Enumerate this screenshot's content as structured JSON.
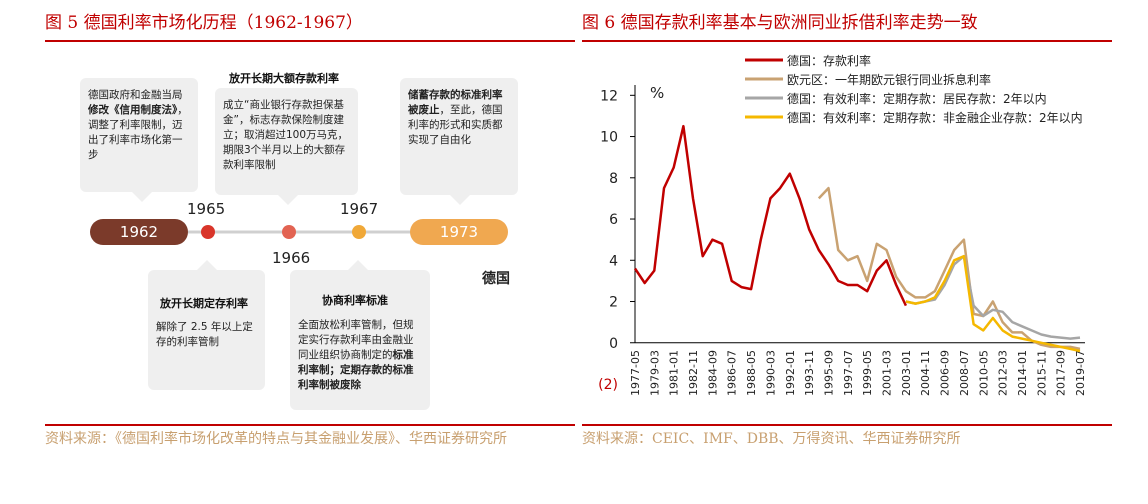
{
  "figure5": {
    "title": "图 5  德国利率市场化历程（1962-1967）",
    "timeline": {
      "start": "1962",
      "end": "1973",
      "points": [
        "1965",
        "1966",
        "1967"
      ],
      "country": "德国"
    },
    "boxes": [
      {
        "parts": [
          {
            "text": "德国政府和金融当局",
            "bold": false
          },
          {
            "text": "修改《信用制度法》",
            "bold": true
          },
          {
            "text": "，调整了利率限制，迈出了利率市场化第一步",
            "bold": false
          }
        ]
      },
      {
        "heading": "放开长期大额存款利率",
        "parts": [
          {
            "text": "成立“商业银行存款担保基金”，标志存款保险制度建立；取消超过100万马克，期限3个半月以上的大额存款利率限制",
            "bold": false
          }
        ]
      },
      {
        "parts": [
          {
            "text": "储蓄存款的标准利率被废止",
            "bold": true
          },
          {
            "text": "，至此，德国利率的形式和实质都实现了自由化",
            "bold": false
          }
        ]
      },
      {
        "heading": "放开长期定存利率",
        "parts": [
          {
            "text": "解除了 2.5 年以上定存的利率管制",
            "bold": false
          }
        ]
      },
      {
        "heading": "协商利率标准",
        "parts": [
          {
            "text": "全面放松利率管制，但规定实行存款利率由金融业同业组织协商制定的",
            "bold": false
          },
          {
            "text": "标准利率制；定期存款的标准利率制被废除",
            "bold": true
          }
        ]
      }
    ],
    "source": "资料来源：《德国利率市场化改革的特点与其金融业发展》、华西证券研究所"
  },
  "chart_data": {
    "type": "line",
    "title": "图 6  德国存款利率基本与欧洲同业拆借利率走势一致",
    "y_label": "%",
    "source": "资料来源：CEIC、IMF、DBB、万得资讯、华西证券研究所",
    "categories": [
      "1977-05",
      null,
      "1979-03",
      null,
      "1981-01",
      null,
      "1982-11",
      null,
      "1984-09",
      null,
      "1986-07",
      null,
      "1988-05",
      null,
      "1990-03",
      null,
      "1992-01",
      null,
      "1993-11",
      null,
      "1995-09",
      null,
      "1997-07",
      null,
      "1999-05",
      null,
      "2001-03",
      null,
      "2003-01",
      null,
      "2004-11",
      null,
      "2006-09",
      null,
      "2008-07",
      null,
      "2010-05",
      null,
      "2012-03",
      null,
      "2014-01",
      null,
      "2015-11",
      null,
      "2017-09",
      null,
      "2019-07"
    ],
    "ylim": [
      -2,
      12.5
    ],
    "yticks": [
      {
        "value": -2,
        "label": "(2)"
      },
      0,
      2,
      4,
      6,
      8,
      10,
      12
    ],
    "legend": "upper-left",
    "series": [
      {
        "name": "德国：存款利率",
        "color": "#c00000",
        "values": [
          3.6,
          2.9,
          3.5,
          7.5,
          8.5,
          10.5,
          7.0,
          4.2,
          5.0,
          4.8,
          3.0,
          2.7,
          2.6,
          5.0,
          7.0,
          7.5,
          8.2,
          7.0,
          5.5,
          4.5,
          3.8,
          3.0,
          2.8,
          2.8,
          2.5,
          3.5,
          4.0,
          2.8,
          1.8,
          null,
          null,
          null,
          null,
          null,
          null,
          null,
          null,
          null,
          null,
          null,
          null,
          null,
          null,
          null,
          null,
          null,
          null
        ]
      },
      {
        "name": "欧元区：一年期欧元银行同业拆息利率",
        "color": "#c9a272",
        "values": [
          null,
          null,
          null,
          null,
          null,
          null,
          null,
          null,
          null,
          null,
          null,
          null,
          null,
          null,
          null,
          null,
          null,
          null,
          null,
          7.0,
          7.5,
          4.5,
          4.0,
          4.2,
          3.0,
          4.8,
          4.5,
          3.2,
          2.5,
          2.2,
          2.2,
          2.5,
          3.5,
          4.5,
          5.0,
          1.4,
          1.3,
          2.0,
          1.0,
          0.5,
          0.5,
          0.1,
          -0.1,
          -0.2,
          -0.2,
          -0.2,
          -0.3
        ]
      },
      {
        "name": "德国：有效利率：定期存款：居民存款：2年以内",
        "color": "#a6a6a6",
        "values": [
          null,
          null,
          null,
          null,
          null,
          null,
          null,
          null,
          null,
          null,
          null,
          null,
          null,
          null,
          null,
          null,
          null,
          null,
          null,
          null,
          null,
          null,
          null,
          null,
          null,
          null,
          null,
          null,
          2.0,
          1.9,
          2.0,
          2.1,
          2.8,
          3.8,
          4.2,
          1.8,
          1.3,
          1.6,
          1.5,
          1.0,
          0.8,
          0.6,
          0.4,
          0.3,
          0.25,
          0.2,
          0.25
        ]
      },
      {
        "name": "德国：有效利率：定期存款：非金融企业存款：2年以内",
        "color": "#f5b800",
        "values": [
          null,
          null,
          null,
          null,
          null,
          null,
          null,
          null,
          null,
          null,
          null,
          null,
          null,
          null,
          null,
          null,
          null,
          null,
          null,
          null,
          null,
          null,
          null,
          null,
          null,
          null,
          null,
          null,
          2.0,
          1.9,
          2.0,
          2.2,
          3.0,
          4.0,
          4.2,
          0.9,
          0.6,
          1.2,
          0.6,
          0.3,
          0.2,
          0.1,
          0.0,
          -0.1,
          -0.2,
          -0.3,
          -0.4
        ]
      }
    ]
  }
}
